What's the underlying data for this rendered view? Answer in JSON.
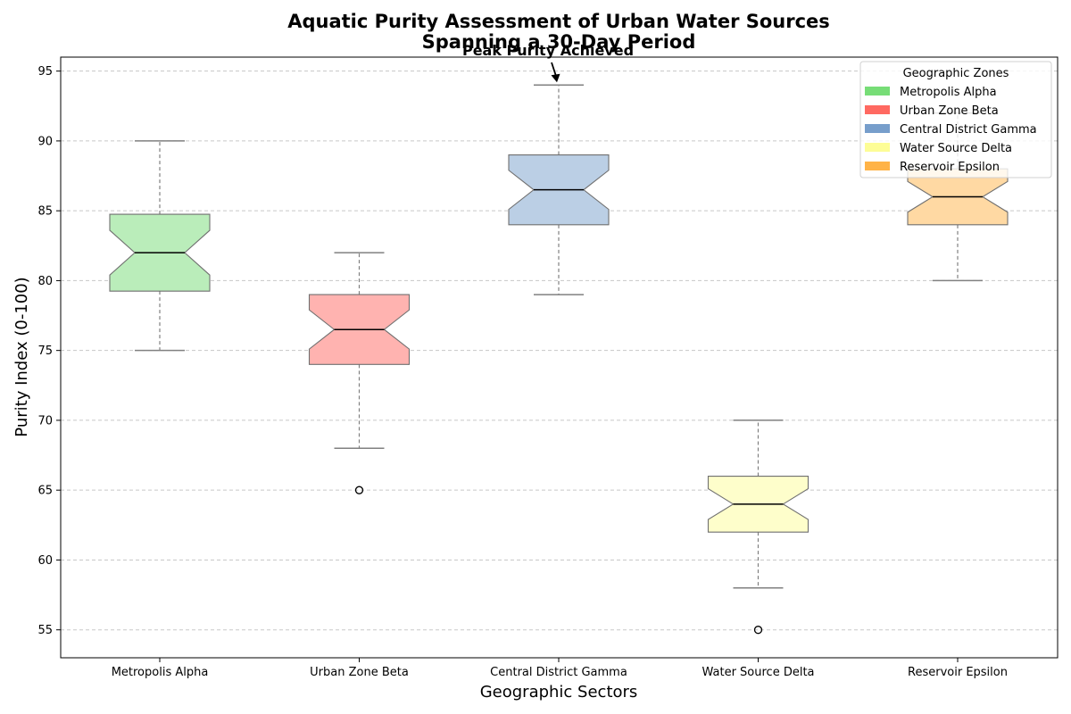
{
  "chart_data": {
    "type": "box",
    "title_lines": [
      "Aquatic Purity Assessment of Urban Water Sources",
      "Spanning a 30-Day Period"
    ],
    "xlabel": "Geographic Sectors",
    "ylabel": "Purity Index (0-100)",
    "ylim": [
      53,
      96
    ],
    "yticks": [
      55,
      60,
      65,
      70,
      75,
      80,
      85,
      90,
      95
    ],
    "grid": true,
    "legend": {
      "title": "Geographic Zones",
      "placement": "top-right",
      "entries": [
        {
          "label": "Metropolis Alpha",
          "color": "#77dd77"
        },
        {
          "label": "Urban Zone Beta",
          "color": "#ff6961"
        },
        {
          "label": "Central District Gamma",
          "color": "#779ecb"
        },
        {
          "label": "Water Source Delta",
          "color": "#fdfd96"
        },
        {
          "label": "Reservoir Epsilon",
          "color": "#ffb347"
        }
      ]
    },
    "categories": [
      "Metropolis Alpha",
      "Urban Zone Beta",
      "Central District Gamma",
      "Water Source Delta",
      "Reservoir Epsilon"
    ],
    "boxes": [
      {
        "category": "Metropolis Alpha",
        "whisker_low": 75,
        "q1": 79.25,
        "median": 82,
        "q3": 84.75,
        "whisker_high": 90,
        "outliers": [],
        "notch": [
          80.4,
          83.6
        ],
        "fill": "#baedba"
      },
      {
        "category": "Urban Zone Beta",
        "whisker_low": 68,
        "q1": 74,
        "median": 76.5,
        "q3": 79,
        "whisker_high": 82,
        "outliers": [
          65
        ],
        "notch": [
          75.1,
          77.9
        ],
        "fill": "#ffb3b0"
      },
      {
        "category": "Central District Gamma",
        "whisker_low": 79,
        "q1": 84,
        "median": 86.5,
        "q3": 89,
        "whisker_high": 94,
        "outliers": [],
        "notch": [
          85.1,
          87.9
        ],
        "fill": "#bbcfe5"
      },
      {
        "category": "Water Source Delta",
        "whisker_low": 58,
        "q1": 62,
        "median": 64,
        "q3": 66,
        "whisker_high": 70,
        "outliers": [
          55
        ],
        "notch": [
          62.9,
          65.1
        ],
        "fill": "#fefecb"
      },
      {
        "category": "Reservoir Epsilon",
        "whisker_low": 80,
        "q1": 84,
        "median": 86,
        "q3": 88,
        "whisker_high": 92,
        "outliers": [],
        "notch": [
          84.9,
          87.1
        ],
        "fill": "#ffd9a3"
      }
    ],
    "annotation": {
      "text": "Peak Purity Achieved",
      "category": "Central District Gamma",
      "value": 94
    }
  }
}
